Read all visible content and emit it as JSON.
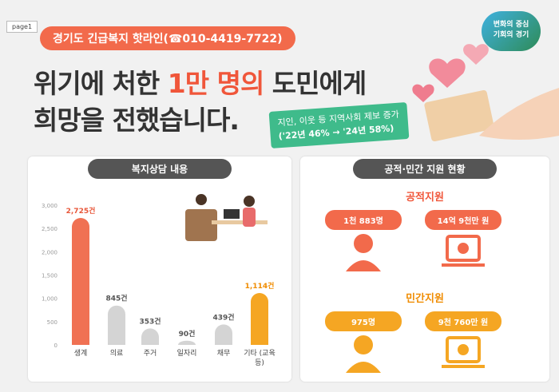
{
  "page_tag": "page1",
  "hotline": "경기도 긴급복지 핫라인(☎010-4419-7722)",
  "logo": {
    "line1": "변화의 중심",
    "line2": "기회의 경기"
  },
  "headline": {
    "line1_before": "위기에 처한 ",
    "line1_highlight": "1만 명의",
    "line1_after": " 도민에게",
    "line2": "희망을 전했습니다."
  },
  "note": {
    "line1": "지인, 이웃 등 지역사회 제보 증가",
    "line2": "('22년 46% → '24년 58%)"
  },
  "chart_data": {
    "type": "bar",
    "title": "복지상담 내용",
    "categories": [
      "생계",
      "의료",
      "주거",
      "일자리",
      "채무",
      "기타 (교육 등)"
    ],
    "values": [
      2725,
      845,
      353,
      90,
      439,
      1114
    ],
    "value_labels": [
      "2,725건",
      "845건",
      "353건",
      "90건",
      "439건",
      "1,114건"
    ],
    "colors": [
      "#f07153",
      "#d4d4d4",
      "#d4d4d4",
      "#d4d4d4",
      "#d4d4d4",
      "#f5a623"
    ],
    "label_colors": [
      "#e8573a",
      "#555555",
      "#555555",
      "#555555",
      "#555555",
      "#f08c00"
    ],
    "ylim": [
      0,
      3000
    ],
    "yticks": [
      0,
      500,
      {
        "value": 1000,
        "label": "1,000"
      },
      {
        "value": 1500,
        "label": "1,500"
      },
      {
        "value": 2000,
        "label": "2,000"
      },
      {
        "value": 2500,
        "label": "2,500"
      },
      {
        "value": 3000,
        "label": "3,000"
      }
    ],
    "grid": false
  },
  "support": {
    "title": "공적·민간 지원 현황",
    "sections": [
      {
        "title": "공적지원",
        "people": "1천 883명",
        "amount": "14억 9천만 원"
      },
      {
        "title": "민간지원",
        "people": "975명",
        "amount": "9천 760만 원"
      }
    ]
  }
}
